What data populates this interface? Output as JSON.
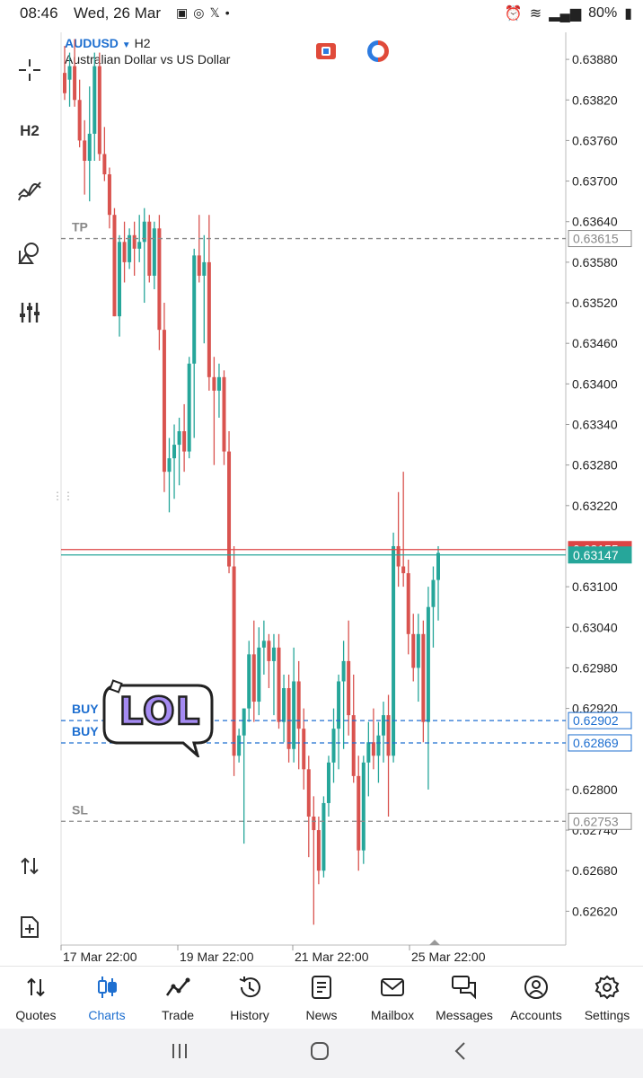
{
  "status": {
    "time": "08:46",
    "date": "Wed, 26 Mar",
    "notif_x": "𝕏",
    "battery": "80%"
  },
  "toolbar": {
    "timeframe": "H2"
  },
  "chart_header": {
    "symbol": "AUDUSD",
    "timeframe": "H2",
    "description": "Australian Dollar vs US Dollar"
  },
  "chart_data": {
    "type": "candlestick",
    "ylim": [
      0.6257,
      0.6392
    ],
    "y_ticks": [
      "0.63880",
      "0.63820",
      "0.63760",
      "0.63700",
      "0.63640",
      "0.63580",
      "0.63520",
      "0.63460",
      "0.63400",
      "0.63340",
      "0.63280",
      "0.63220",
      "0.63100",
      "0.63040",
      "0.62980",
      "0.62920",
      "0.62800",
      "0.62740",
      "0.62680",
      "0.62620"
    ],
    "x_ticks": [
      "17 Mar 22:00",
      "19 Mar 22:00",
      "21 Mar 22:00",
      "25 Mar 22:00"
    ],
    "candles": [
      {
        "o": 0.6386,
        "h": 0.639,
        "l": 0.6382,
        "c": 0.6383
      },
      {
        "o": 0.6385,
        "h": 0.6389,
        "l": 0.6381,
        "c": 0.6387
      },
      {
        "o": 0.6387,
        "h": 0.6391,
        "l": 0.6381,
        "c": 0.6382
      },
      {
        "o": 0.6382,
        "h": 0.6385,
        "l": 0.6375,
        "c": 0.6376
      },
      {
        "o": 0.6376,
        "h": 0.6379,
        "l": 0.6368,
        "c": 0.6373
      },
      {
        "o": 0.6373,
        "h": 0.6384,
        "l": 0.6367,
        "c": 0.6377
      },
      {
        "o": 0.6377,
        "h": 0.6389,
        "l": 0.6373,
        "c": 0.6387
      },
      {
        "o": 0.6387,
        "h": 0.6389,
        "l": 0.6373,
        "c": 0.6374
      },
      {
        "o": 0.6374,
        "h": 0.6378,
        "l": 0.637,
        "c": 0.6371
      },
      {
        "o": 0.6371,
        "h": 0.6372,
        "l": 0.6363,
        "c": 0.6365
      },
      {
        "o": 0.6365,
        "h": 0.6366,
        "l": 0.635,
        "c": 0.635
      },
      {
        "o": 0.635,
        "h": 0.6362,
        "l": 0.6347,
        "c": 0.6361
      },
      {
        "o": 0.6361,
        "h": 0.6364,
        "l": 0.6355,
        "c": 0.6358
      },
      {
        "o": 0.6358,
        "h": 0.6363,
        "l": 0.6357,
        "c": 0.6362
      },
      {
        "o": 0.6362,
        "h": 0.6364,
        "l": 0.6356,
        "c": 0.636
      },
      {
        "o": 0.636,
        "h": 0.6365,
        "l": 0.6358,
        "c": 0.6361
      },
      {
        "o": 0.6361,
        "h": 0.6366,
        "l": 0.6352,
        "c": 0.6364
      },
      {
        "o": 0.6364,
        "h": 0.6365,
        "l": 0.6355,
        "c": 0.6356
      },
      {
        "o": 0.6356,
        "h": 0.6364,
        "l": 0.6354,
        "c": 0.6363
      },
      {
        "o": 0.6363,
        "h": 0.6365,
        "l": 0.6345,
        "c": 0.6348
      },
      {
        "o": 0.6348,
        "h": 0.6352,
        "l": 0.6324,
        "c": 0.6327
      },
      {
        "o": 0.6327,
        "h": 0.6332,
        "l": 0.6321,
        "c": 0.6329
      },
      {
        "o": 0.6329,
        "h": 0.6334,
        "l": 0.6323,
        "c": 0.6331
      },
      {
        "o": 0.6331,
        "h": 0.6335,
        "l": 0.6325,
        "c": 0.6333
      },
      {
        "o": 0.6333,
        "h": 0.6337,
        "l": 0.6327,
        "c": 0.633
      },
      {
        "o": 0.633,
        "h": 0.6344,
        "l": 0.6329,
        "c": 0.6343
      },
      {
        "o": 0.6343,
        "h": 0.636,
        "l": 0.6332,
        "c": 0.6359
      },
      {
        "o": 0.6359,
        "h": 0.6365,
        "l": 0.6355,
        "c": 0.6356
      },
      {
        "o": 0.6356,
        "h": 0.6362,
        "l": 0.6346,
        "c": 0.6358
      },
      {
        "o": 0.6358,
        "h": 0.6365,
        "l": 0.6339,
        "c": 0.6341
      },
      {
        "o": 0.6341,
        "h": 0.6344,
        "l": 0.6328,
        "c": 0.6339
      },
      {
        "o": 0.6339,
        "h": 0.6343,
        "l": 0.6335,
        "c": 0.6341
      },
      {
        "o": 0.6341,
        "h": 0.6342,
        "l": 0.6328,
        "c": 0.633
      },
      {
        "o": 0.633,
        "h": 0.6333,
        "l": 0.6312,
        "c": 0.6313
      },
      {
        "o": 0.6313,
        "h": 0.6316,
        "l": 0.6282,
        "c": 0.6285
      },
      {
        "o": 0.6285,
        "h": 0.6289,
        "l": 0.6284,
        "c": 0.6288
      },
      {
        "o": 0.6288,
        "h": 0.6292,
        "l": 0.6272,
        "c": 0.6292
      },
      {
        "o": 0.6292,
        "h": 0.6302,
        "l": 0.629,
        "c": 0.63
      },
      {
        "o": 0.63,
        "h": 0.6305,
        "l": 0.629,
        "c": 0.6293
      },
      {
        "o": 0.6293,
        "h": 0.6304,
        "l": 0.6291,
        "c": 0.6301
      },
      {
        "o": 0.6301,
        "h": 0.6305,
        "l": 0.6297,
        "c": 0.6302
      },
      {
        "o": 0.6302,
        "h": 0.6303,
        "l": 0.6295,
        "c": 0.6299
      },
      {
        "o": 0.6299,
        "h": 0.6303,
        "l": 0.6291,
        "c": 0.6301
      },
      {
        "o": 0.6301,
        "h": 0.6303,
        "l": 0.6289,
        "c": 0.629
      },
      {
        "o": 0.629,
        "h": 0.6297,
        "l": 0.6287,
        "c": 0.6295
      },
      {
        "o": 0.6295,
        "h": 0.6297,
        "l": 0.6284,
        "c": 0.6286
      },
      {
        "o": 0.6286,
        "h": 0.6301,
        "l": 0.6284,
        "c": 0.6296
      },
      {
        "o": 0.6296,
        "h": 0.6299,
        "l": 0.6283,
        "c": 0.6289
      },
      {
        "o": 0.6289,
        "h": 0.6292,
        "l": 0.628,
        "c": 0.6283
      },
      {
        "o": 0.6283,
        "h": 0.6285,
        "l": 0.627,
        "c": 0.6276
      },
      {
        "o": 0.6276,
        "h": 0.6279,
        "l": 0.626,
        "c": 0.6274
      },
      {
        "o": 0.6274,
        "h": 0.6276,
        "l": 0.6266,
        "c": 0.6268
      },
      {
        "o": 0.6268,
        "h": 0.6279,
        "l": 0.6267,
        "c": 0.6278
      },
      {
        "o": 0.6278,
        "h": 0.6285,
        "l": 0.6276,
        "c": 0.6284
      },
      {
        "o": 0.6284,
        "h": 0.6292,
        "l": 0.6281,
        "c": 0.6289
      },
      {
        "o": 0.6289,
        "h": 0.6297,
        "l": 0.6283,
        "c": 0.6296
      },
      {
        "o": 0.6296,
        "h": 0.6302,
        "l": 0.6286,
        "c": 0.6299
      },
      {
        "o": 0.6299,
        "h": 0.6305,
        "l": 0.6288,
        "c": 0.6291
      },
      {
        "o": 0.6291,
        "h": 0.6297,
        "l": 0.6281,
        "c": 0.6282
      },
      {
        "o": 0.6282,
        "h": 0.6285,
        "l": 0.6268,
        "c": 0.6271
      },
      {
        "o": 0.6271,
        "h": 0.6285,
        "l": 0.6269,
        "c": 0.6284
      },
      {
        "o": 0.6284,
        "h": 0.629,
        "l": 0.6279,
        "c": 0.6287
      },
      {
        "o": 0.6287,
        "h": 0.6292,
        "l": 0.6283,
        "c": 0.6285
      },
      {
        "o": 0.6285,
        "h": 0.629,
        "l": 0.6281,
        "c": 0.6288
      },
      {
        "o": 0.6288,
        "h": 0.6293,
        "l": 0.6284,
        "c": 0.6291
      },
      {
        "o": 0.6291,
        "h": 0.6294,
        "l": 0.6276,
        "c": 0.6285
      },
      {
        "o": 0.6285,
        "h": 0.6318,
        "l": 0.6284,
        "c": 0.6316
      },
      {
        "o": 0.6316,
        "h": 0.6324,
        "l": 0.631,
        "c": 0.6313
      },
      {
        "o": 0.6313,
        "h": 0.6327,
        "l": 0.631,
        "c": 0.6312
      },
      {
        "o": 0.6312,
        "h": 0.6314,
        "l": 0.63,
        "c": 0.6303
      },
      {
        "o": 0.6303,
        "h": 0.6306,
        "l": 0.6296,
        "c": 0.6298
      },
      {
        "o": 0.6298,
        "h": 0.6306,
        "l": 0.6293,
        "c": 0.6303
      },
      {
        "o": 0.6303,
        "h": 0.6305,
        "l": 0.6287,
        "c": 0.629
      },
      {
        "o": 0.629,
        "h": 0.631,
        "l": 0.628,
        "c": 0.6307
      },
      {
        "o": 0.6307,
        "h": 0.6313,
        "l": 0.6301,
        "c": 0.6311
      },
      {
        "o": 0.6311,
        "h": 0.6316,
        "l": 0.6305,
        "c": 0.6315
      }
    ],
    "levels": [
      {
        "label": "TP",
        "value": "0.63615",
        "price": 0.63615,
        "color": "#888888"
      },
      {
        "label": "",
        "value": "0.63155",
        "price": 0.63155,
        "color": "#d44"
      },
      {
        "label": "",
        "value": "0.63147",
        "price": 0.63147,
        "color": "#26a69a"
      },
      {
        "label": "BUY",
        "value": "0.62902",
        "price": 0.62902,
        "color": "#1e6fd0"
      },
      {
        "label": "BUY",
        "value": "0.62869",
        "price": 0.62869,
        "color": "#1e6fd0"
      },
      {
        "label": "SL",
        "value": "0.62753",
        "price": 0.62753,
        "color": "#888888"
      }
    ],
    "up_color": "#26a69a",
    "down_color": "#d9534f"
  },
  "sticker": {
    "text": "LOL"
  },
  "bottom_nav": [
    {
      "id": "quotes",
      "label": "Quotes"
    },
    {
      "id": "charts",
      "label": "Charts",
      "active": true
    },
    {
      "id": "trade",
      "label": "Trade"
    },
    {
      "id": "history",
      "label": "History"
    },
    {
      "id": "news",
      "label": "News"
    },
    {
      "id": "mailbox",
      "label": "Mailbox"
    },
    {
      "id": "messages",
      "label": "Messages"
    },
    {
      "id": "accounts",
      "label": "Accounts"
    },
    {
      "id": "settings",
      "label": "Settings"
    }
  ]
}
